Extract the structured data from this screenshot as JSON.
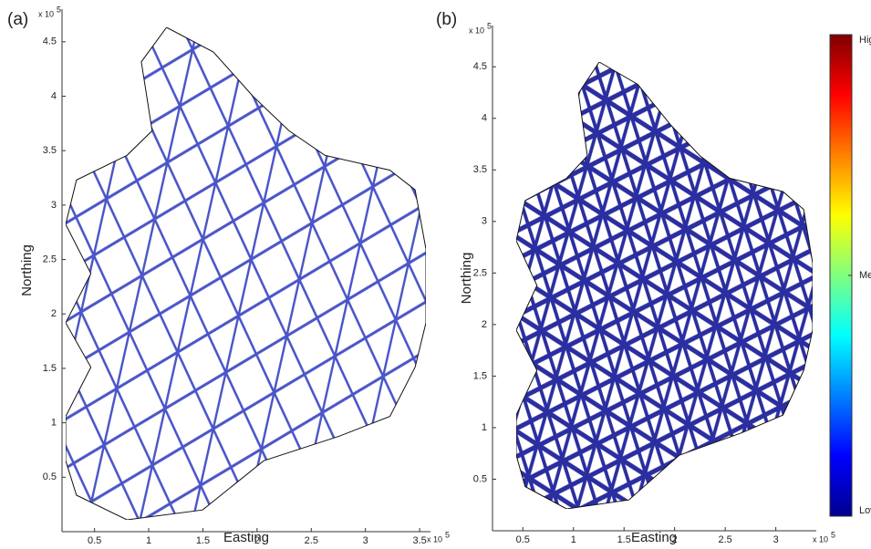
{
  "chart_data": [
    {
      "type": "map",
      "panel_label": "(a)",
      "xlabel": "Easting",
      "ylabel": "Northing",
      "multiplier": "x 10",
      "power": 5,
      "xlim": [
        0.2,
        3.6
      ],
      "ylim": [
        0,
        4.8
      ],
      "xticks": [
        0.5,
        1,
        1.5,
        2,
        2.5,
        3,
        3.5
      ],
      "yticks": [
        0.5,
        1,
        1.5,
        2,
        2.5,
        3,
        3.5,
        4,
        4.5
      ],
      "color": "#4a55c8"
    },
    {
      "type": "map",
      "panel_label": "(b)",
      "xlabel": "Easting",
      "ylabel": "Northing",
      "multiplier": "x 10",
      "power": 5,
      "xlim": [
        0.2,
        3.4
      ],
      "ylim": [
        0,
        4.9
      ],
      "xticks": [
        0.5,
        1,
        1.5,
        2,
        2.5,
        3
      ],
      "yticks": [
        0.5,
        1,
        1.5,
        2,
        2.5,
        3,
        3.5,
        4,
        4.5
      ],
      "color": "#2a2ea0",
      "colorbar": {
        "labels": [
          "High",
          "Med",
          "Low"
        ],
        "colors": [
          "#800000",
          "#ff0000",
          "#ff8000",
          "#ffff00",
          "#80ff80",
          "#00ffff",
          "#0080ff",
          "#0000ff",
          "#00008f"
        ]
      }
    }
  ]
}
